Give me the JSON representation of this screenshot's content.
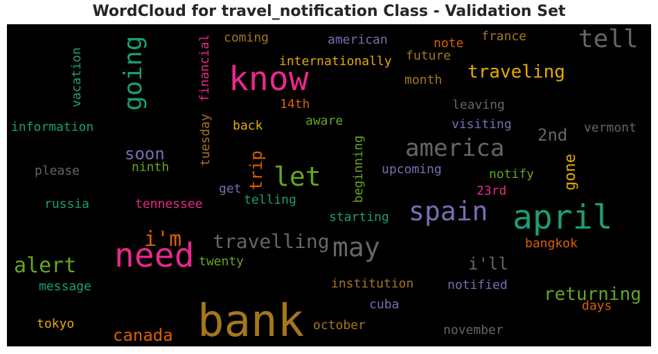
{
  "title": "WordCloud for travel_notification Class - Validation Set",
  "colors": {
    "green": "#1b9e77",
    "orange": "#d95f02",
    "purple": "#7570b3",
    "pink": "#e7298a",
    "lime": "#66a61e",
    "yellow": "#e6ab02",
    "brown": "#a6761d",
    "gray": "#666666"
  },
  "chart_data": {
    "type": "wordcloud",
    "words": [
      {
        "text": "bank",
        "size": 64,
        "color": "brown",
        "rotate": false
      },
      {
        "text": "need",
        "size": 48,
        "color": "pink",
        "rotate": false
      },
      {
        "text": "know",
        "size": 48,
        "color": "pink",
        "rotate": false
      },
      {
        "text": "april",
        "size": 48,
        "color": "green",
        "rotate": false
      },
      {
        "text": "spain",
        "size": 38,
        "color": "purple",
        "rotate": false
      },
      {
        "text": "may",
        "size": 38,
        "color": "gray",
        "rotate": false
      },
      {
        "text": "let",
        "size": 38,
        "color": "lime",
        "rotate": false
      },
      {
        "text": "tell",
        "size": 36,
        "color": "gray",
        "rotate": false
      },
      {
        "text": "america",
        "size": 34,
        "color": "gray",
        "rotate": false
      },
      {
        "text": "going",
        "size": 36,
        "color": "green",
        "rotate": true
      },
      {
        "text": "alert",
        "size": 30,
        "color": "lime",
        "rotate": false
      },
      {
        "text": "i'm",
        "size": 30,
        "color": "orange",
        "rotate": false
      },
      {
        "text": "travelling",
        "size": 28,
        "color": "gray",
        "rotate": false
      },
      {
        "text": "returning",
        "size": 26,
        "color": "lime",
        "rotate": false
      },
      {
        "text": "traveling",
        "size": 26,
        "color": "yellow",
        "rotate": false
      },
      {
        "text": "2nd",
        "size": 24,
        "color": "gray",
        "rotate": false
      },
      {
        "text": "canada",
        "size": 24,
        "color": "orange",
        "rotate": false
      },
      {
        "text": "i'll",
        "size": 24,
        "color": "gray",
        "rotate": false
      },
      {
        "text": "soon",
        "size": 24,
        "color": "purple",
        "rotate": false
      },
      {
        "text": "trip",
        "size": 24,
        "color": "orange",
        "rotate": true
      },
      {
        "text": "gone",
        "size": 22,
        "color": "yellow",
        "rotate": true
      },
      {
        "text": "internationally",
        "size": 18,
        "color": "yellow",
        "rotate": false
      },
      {
        "text": "american",
        "size": 18,
        "color": "purple",
        "rotate": false
      },
      {
        "text": "coming",
        "size": 18,
        "color": "brown",
        "rotate": false
      },
      {
        "text": "france",
        "size": 18,
        "color": "brown",
        "rotate": false
      },
      {
        "text": "note",
        "size": 18,
        "color": "orange",
        "rotate": false
      },
      {
        "text": "future",
        "size": 18,
        "color": "brown",
        "rotate": false
      },
      {
        "text": "month",
        "size": 18,
        "color": "brown",
        "rotate": false
      },
      {
        "text": "leaving",
        "size": 18,
        "color": "gray",
        "rotate": false
      },
      {
        "text": "visiting",
        "size": 18,
        "color": "purple",
        "rotate": false
      },
      {
        "text": "vermont",
        "size": 18,
        "color": "gray",
        "rotate": false
      },
      {
        "text": "information",
        "size": 18,
        "color": "green",
        "rotate": false
      },
      {
        "text": "please",
        "size": 18,
        "color": "gray",
        "rotate": false
      },
      {
        "text": "ninth",
        "size": 18,
        "color": "lime",
        "rotate": false
      },
      {
        "text": "back",
        "size": 18,
        "color": "yellow",
        "rotate": false
      },
      {
        "text": "aware",
        "size": 18,
        "color": "lime",
        "rotate": false
      },
      {
        "text": "14th",
        "size": 18,
        "color": "orange",
        "rotate": false
      },
      {
        "text": "upcoming",
        "size": 18,
        "color": "purple",
        "rotate": false
      },
      {
        "text": "notify",
        "size": 18,
        "color": "lime",
        "rotate": false
      },
      {
        "text": "23rd",
        "size": 18,
        "color": "pink",
        "rotate": false
      },
      {
        "text": "get",
        "size": 18,
        "color": "purple",
        "rotate": false
      },
      {
        "text": "telling",
        "size": 18,
        "color": "green",
        "rotate": false
      },
      {
        "text": "russia",
        "size": 18,
        "color": "green",
        "rotate": false
      },
      {
        "text": "tennessee",
        "size": 18,
        "color": "pink",
        "rotate": false
      },
      {
        "text": "starting",
        "size": 18,
        "color": "green",
        "rotate": false
      },
      {
        "text": "bangkok",
        "size": 18,
        "color": "orange",
        "rotate": false
      },
      {
        "text": "twenty",
        "size": 18,
        "color": "lime",
        "rotate": false
      },
      {
        "text": "message",
        "size": 18,
        "color": "green",
        "rotate": false
      },
      {
        "text": "institution",
        "size": 18,
        "color": "brown",
        "rotate": false
      },
      {
        "text": "notified",
        "size": 18,
        "color": "purple",
        "rotate": false
      },
      {
        "text": "cuba",
        "size": 18,
        "color": "purple",
        "rotate": false
      },
      {
        "text": "days",
        "size": 18,
        "color": "orange",
        "rotate": false
      },
      {
        "text": "tokyo",
        "size": 18,
        "color": "yellow",
        "rotate": false
      },
      {
        "text": "october",
        "size": 18,
        "color": "brown",
        "rotate": false
      },
      {
        "text": "november",
        "size": 18,
        "color": "gray",
        "rotate": false
      },
      {
        "text": "vacation",
        "size": 18,
        "color": "green",
        "rotate": true
      },
      {
        "text": "financial",
        "size": 18,
        "color": "pink",
        "rotate": true
      },
      {
        "text": "tuesday",
        "size": 18,
        "color": "brown",
        "rotate": true
      },
      {
        "text": "beginning",
        "size": 18,
        "color": "lime",
        "rotate": true
      }
    ]
  }
}
